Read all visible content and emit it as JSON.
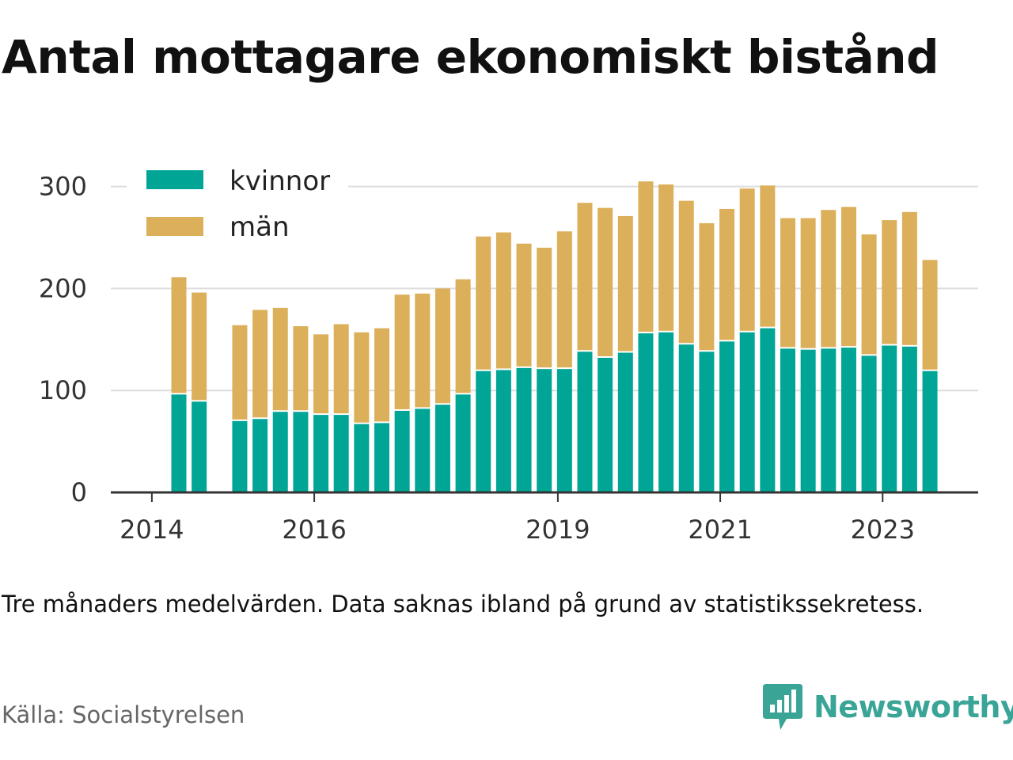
{
  "title": "Antal mottagare ekonomiskt bistånd",
  "note": "Tre månaders medelvärden. Data saknas ibland på grund av statistikssekretess.",
  "source": "Källa: Socialstyrelsen",
  "brand": {
    "name": "Newsworthy",
    "icon": "newsworthy-logo-icon"
  },
  "colors": {
    "kvinnor": "#00a596",
    "man": "#dcaf5a",
    "axis": "#333333",
    "grid": "#dddddd"
  },
  "chart_data": {
    "type": "bar",
    "stacked": true,
    "legend_position": "top-left",
    "grid": true,
    "ylim": [
      0,
      300
    ],
    "yticks": [
      "0",
      "100",
      "200",
      "300"
    ],
    "xticks": [
      "2014",
      "2016",
      "2019",
      "2021",
      "2023"
    ],
    "xlabel": "",
    "ylabel": "",
    "series": [
      {
        "name": "kvinnor",
        "values": [
          96,
          89,
          null,
          70,
          72,
          79,
          79,
          76,
          76,
          67,
          68,
          80,
          82,
          86,
          96,
          119,
          120,
          122,
          121,
          121,
          138,
          132,
          137,
          156,
          157,
          145,
          138,
          148,
          157,
          161,
          141,
          140,
          141,
          142,
          134,
          144,
          143,
          119
        ]
      },
      {
        "name": "män",
        "values": [
          115,
          107,
          null,
          94,
          107,
          102,
          84,
          79,
          89,
          90,
          93,
          114,
          113,
          114,
          113,
          132,
          135,
          122,
          119,
          135,
          146,
          147,
          134,
          149,
          145,
          141,
          126,
          130,
          141,
          140,
          128,
          129,
          136,
          138,
          119,
          123,
          132,
          109
        ]
      }
    ]
  }
}
